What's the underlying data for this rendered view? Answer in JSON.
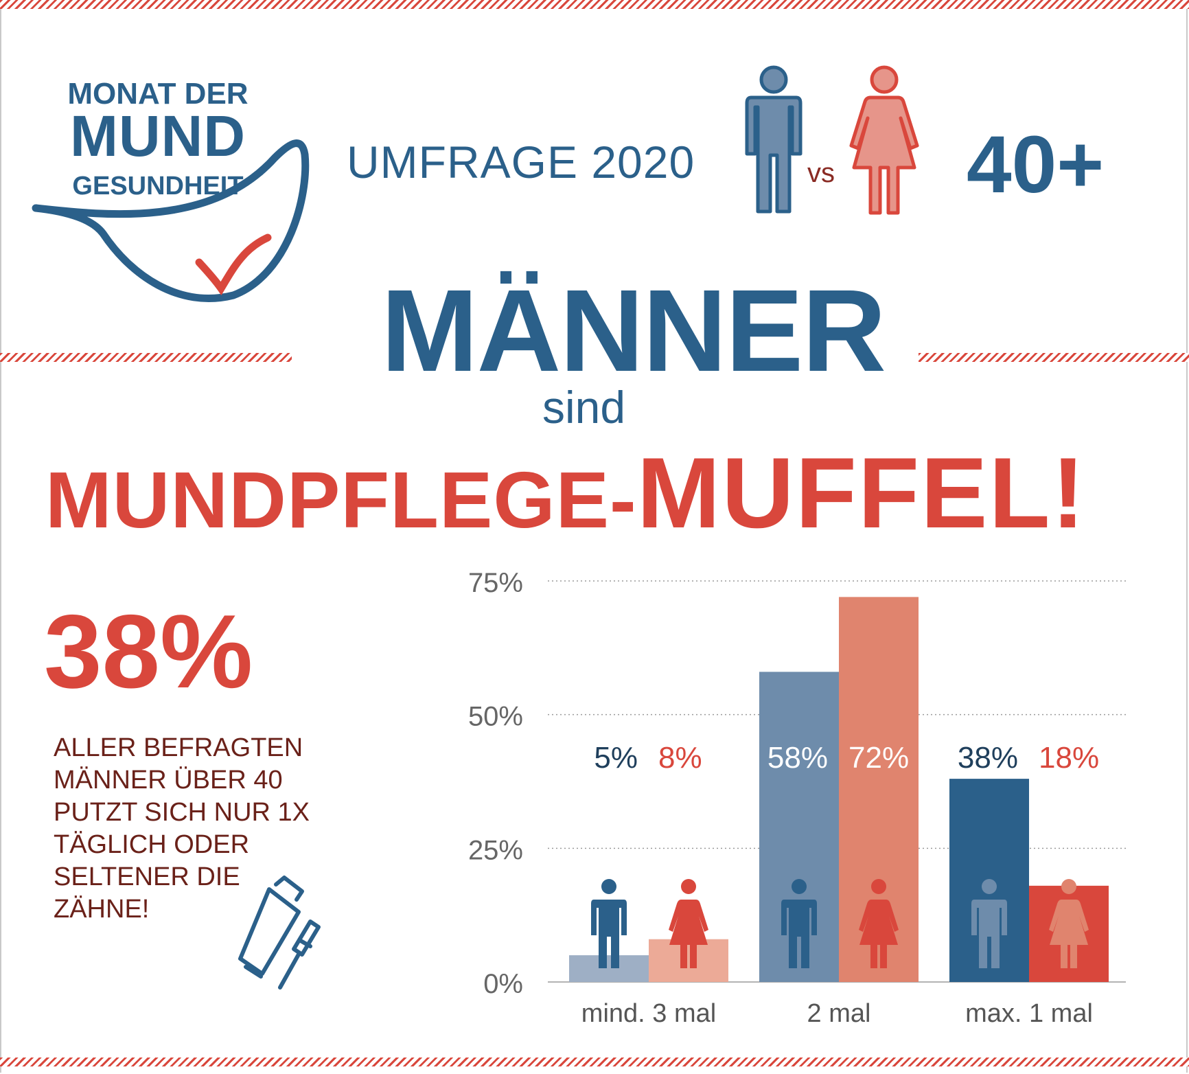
{
  "logo": {
    "line1": "MONAT DER",
    "line2": "MUND",
    "line3": "GESUNDHEIT"
  },
  "header": {
    "survey": "UMFRAGE 2020",
    "vs": "vs",
    "age": "40+"
  },
  "headline": {
    "line1": "MÄNNER",
    "line2": "sind",
    "line3a": "MUNDPFLEGE-",
    "line3b": "MUFFEL!"
  },
  "stat": {
    "value": "38%",
    "text": "ALLER BEFRAGTEN MÄNNER ÜBER 40 PUTZT SICH NUR 1X TÄGLICH ODER SELTENER DIE ZÄHNE!"
  },
  "colors": {
    "blue": "#2b608a",
    "red": "#d9473c",
    "dark_red_text": "#6a2119"
  },
  "chart_data": {
    "type": "bar",
    "categories": [
      "mind. 3 mal",
      "2 mal",
      "max. 1 mal"
    ],
    "series": [
      {
        "values": [
          5,
          58,
          38
        ],
        "labels": [
          "5%",
          "58%",
          "38%"
        ],
        "bar_colors": [
          "#9eafc5",
          "#6e8cab",
          "#2b608a"
        ],
        "label_colors": [
          "#1f3f5c",
          "#ffffff",
          "#1f3f5c"
        ],
        "icon": "male-icon"
      },
      {
        "values": [
          8,
          72,
          18
        ],
        "labels": [
          "8%",
          "72%",
          "18%"
        ],
        "bar_colors": [
          "#ecaa97",
          "#e0846e",
          "#d9473c"
        ],
        "label_colors": [
          "#d9473c",
          "#ffffff",
          "#d9473c"
        ],
        "icon": "female-icon"
      }
    ],
    "ylim": [
      0,
      75
    ],
    "yticks": [
      "0%",
      "25%",
      "50%",
      "75%"
    ],
    "grid": true,
    "xlabel": "",
    "ylabel": ""
  }
}
